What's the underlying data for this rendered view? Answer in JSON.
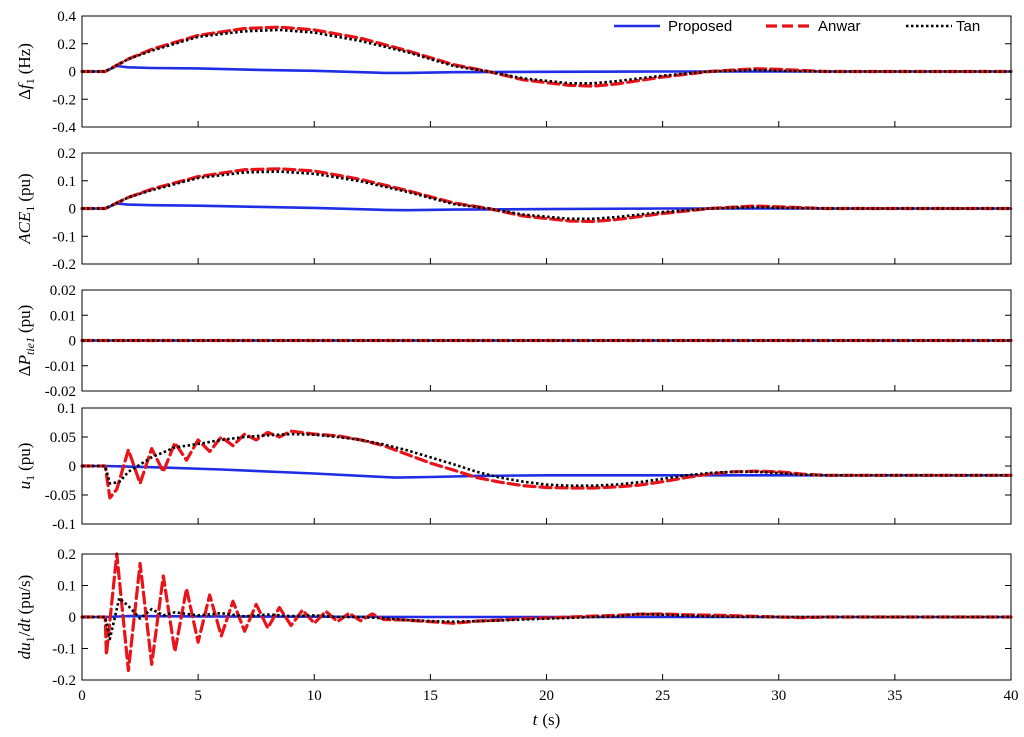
{
  "legend": {
    "position": "top-right",
    "entries": [
      {
        "name": "Proposed",
        "color": "#1f2ee6",
        "style": "solid"
      },
      {
        "name": "Anwar",
        "color": "#e8141a",
        "style": "dashed"
      },
      {
        "name": "Tan",
        "color": "#000000",
        "style": "dotted"
      }
    ]
  },
  "xlabel": {
    "var": "t",
    "unit": "(s)"
  },
  "chart_data": [
    {
      "type": "line",
      "ylabel": {
        "prefix": "Δ",
        "var": "f",
        "sub": "1",
        "unit": "(Hz)"
      },
      "ylim": [
        -0.4,
        0.4
      ],
      "xlim": [
        0,
        40
      ],
      "yticks": [
        "0.4",
        "0.2",
        "0",
        "-0.2",
        "-0.4"
      ],
      "ytick_values": [
        0.4,
        0.2,
        0,
        -0.2,
        -0.4
      ],
      "xticks": [
        5,
        10,
        15,
        20,
        25,
        30,
        35
      ],
      "series": [
        {
          "name": "Proposed",
          "x": [
            0,
            1,
            1.5,
            2,
            3,
            5,
            8,
            10,
            13,
            14,
            16,
            20,
            25,
            30,
            40
          ],
          "y": [
            0,
            0,
            0.04,
            0.03,
            0.025,
            0.022,
            0.01,
            0.005,
            -0.01,
            -0.01,
            -0.005,
            -0.002,
            0,
            0,
            0
          ]
        },
        {
          "name": "Anwar",
          "x": [
            0,
            1,
            2,
            3,
            5,
            7,
            8.5,
            10,
            12,
            14,
            16,
            17.5,
            19,
            21,
            22,
            23,
            25,
            27,
            29,
            30,
            32,
            40
          ],
          "y": [
            0,
            0,
            0.09,
            0.16,
            0.26,
            0.31,
            0.32,
            0.3,
            0.24,
            0.15,
            0.05,
            0,
            -0.06,
            -0.1,
            -0.105,
            -0.09,
            -0.04,
            0,
            0.02,
            0.015,
            0,
            0
          ]
        },
        {
          "name": "Tan",
          "x": [
            0,
            1,
            2,
            3,
            5,
            7,
            8.5,
            10,
            12,
            14,
            16,
            17.5,
            19,
            21,
            22,
            23,
            25,
            27,
            29,
            30,
            32,
            40
          ],
          "y": [
            0,
            0,
            0.09,
            0.15,
            0.25,
            0.29,
            0.3,
            0.28,
            0.22,
            0.14,
            0.04,
            0,
            -0.05,
            -0.085,
            -0.085,
            -0.07,
            -0.03,
            0,
            0.01,
            0.005,
            0,
            0
          ]
        }
      ]
    },
    {
      "type": "line",
      "ylabel": {
        "prefix": "",
        "var": "ACE",
        "sub": "1",
        "unit": "(pu)"
      },
      "ylim": [
        -0.2,
        0.2
      ],
      "xlim": [
        0,
        40
      ],
      "yticks": [
        "0.2",
        "0.1",
        "0",
        "-0.1",
        "-0.2"
      ],
      "ytick_values": [
        0.2,
        0.1,
        0,
        -0.1,
        -0.2
      ],
      "xticks": [
        5,
        10,
        15,
        20,
        25,
        30,
        35
      ],
      "series": [
        {
          "name": "Proposed",
          "x": [
            0,
            1,
            1.5,
            2,
            3,
            5,
            8,
            10,
            13,
            14,
            16,
            20,
            25,
            30,
            40
          ],
          "y": [
            0,
            0,
            0.018,
            0.014,
            0.012,
            0.01,
            0.005,
            0.002,
            -0.005,
            -0.006,
            -0.004,
            -0.002,
            0,
            0,
            0
          ]
        },
        {
          "name": "Anwar",
          "x": [
            0,
            1,
            2,
            3,
            5,
            7,
            8.5,
            10,
            12,
            14,
            16,
            17.5,
            19,
            21,
            22,
            23,
            25,
            27,
            29,
            30,
            32,
            40
          ],
          "y": [
            0,
            0,
            0.04,
            0.07,
            0.115,
            0.14,
            0.143,
            0.135,
            0.105,
            0.065,
            0.02,
            0,
            -0.027,
            -0.045,
            -0.047,
            -0.04,
            -0.018,
            0,
            0.009,
            0.006,
            0,
            0
          ]
        },
        {
          "name": "Tan",
          "x": [
            0,
            1,
            2,
            3,
            5,
            7,
            8.5,
            10,
            12,
            14,
            16,
            17.5,
            19,
            21,
            22,
            23,
            25,
            27,
            29,
            30,
            32,
            40
          ],
          "y": [
            0,
            0,
            0.04,
            0.066,
            0.11,
            0.13,
            0.133,
            0.125,
            0.098,
            0.06,
            0.016,
            0,
            -0.022,
            -0.037,
            -0.037,
            -0.031,
            -0.013,
            0,
            0.005,
            0.003,
            0,
            0
          ]
        }
      ]
    },
    {
      "type": "line",
      "ylabel": {
        "prefix": "Δ",
        "var": "P",
        "sub": "tie1",
        "unit": "(pu)"
      },
      "ylim": [
        -0.02,
        0.02
      ],
      "xlim": [
        0,
        40
      ],
      "yticks": [
        "0.02",
        "0.01",
        "0",
        "-0.01",
        "-0.02"
      ],
      "ytick_values": [
        0.02,
        0.01,
        0,
        -0.01,
        -0.02
      ],
      "xticks": [
        5,
        10,
        15,
        20,
        25,
        30,
        35
      ],
      "series": [
        {
          "name": "Proposed",
          "x": [
            0,
            40
          ],
          "y": [
            0,
            0
          ]
        },
        {
          "name": "Anwar",
          "x": [
            0,
            40
          ],
          "y": [
            0,
            0
          ]
        },
        {
          "name": "Tan",
          "x": [
            0,
            40
          ],
          "y": [
            0,
            0
          ]
        }
      ]
    },
    {
      "type": "line",
      "ylabel": {
        "prefix": "",
        "var": "u",
        "sub": "1",
        "unit": "(pu)"
      },
      "ylim": [
        -0.1,
        0.1
      ],
      "xlim": [
        0,
        40
      ],
      "yticks": [
        "0.1",
        "0.05",
        "0",
        "-0.05",
        "-0.1"
      ],
      "ytick_values": [
        0.1,
        0.05,
        0,
        -0.05,
        -0.1
      ],
      "xticks": [
        5,
        10,
        15,
        20,
        25,
        30,
        35
      ],
      "series": [
        {
          "name": "Proposed",
          "x": [
            0,
            1,
            3,
            6,
            10,
            13.5,
            15,
            17,
            20,
            25,
            30,
            40
          ],
          "y": [
            0,
            0,
            -0.002,
            -0.006,
            -0.013,
            -0.02,
            -0.019,
            -0.017,
            -0.016,
            -0.016,
            -0.016,
            -0.016
          ]
        },
        {
          "name": "Anwar",
          "x": [
            0,
            1,
            1.2,
            1.5,
            2,
            2.5,
            3,
            3.5,
            4,
            4.5,
            5,
            5.5,
            6,
            6.5,
            7,
            7.5,
            8,
            8.5,
            9,
            10,
            11,
            12,
            13,
            14,
            15,
            16,
            17,
            18,
            19,
            20,
            21,
            22,
            23,
            24,
            25,
            26,
            27,
            28,
            29,
            30,
            31,
            32,
            40
          ],
          "y": [
            0,
            0,
            -0.055,
            -0.04,
            0.028,
            -0.03,
            0.03,
            -0.01,
            0.04,
            0.01,
            0.045,
            0.025,
            0.05,
            0.035,
            0.055,
            0.045,
            0.058,
            0.05,
            0.06,
            0.055,
            0.052,
            0.045,
            0.035,
            0.02,
            0.005,
            -0.007,
            -0.02,
            -0.028,
            -0.034,
            -0.037,
            -0.038,
            -0.038,
            -0.036,
            -0.033,
            -0.027,
            -0.02,
            -0.014,
            -0.01,
            -0.009,
            -0.01,
            -0.014,
            -0.016,
            -0.016
          ]
        },
        {
          "name": "Tan",
          "x": [
            0,
            1,
            1.2,
            1.6,
            2,
            3,
            4,
            5,
            6,
            7,
            8,
            9,
            10,
            11,
            12,
            13,
            14,
            15,
            16,
            17,
            18,
            19,
            20,
            21,
            22,
            23,
            24,
            25,
            26,
            27,
            28,
            29,
            30,
            31,
            32,
            40
          ],
          "y": [
            0,
            0,
            -0.03,
            -0.028,
            -0.01,
            0.015,
            0.032,
            0.038,
            0.045,
            0.05,
            0.053,
            0.055,
            0.054,
            0.05,
            0.045,
            0.037,
            0.027,
            0.015,
            0.003,
            -0.01,
            -0.02,
            -0.027,
            -0.032,
            -0.034,
            -0.034,
            -0.032,
            -0.028,
            -0.022,
            -0.016,
            -0.012,
            -0.01,
            -0.01,
            -0.012,
            -0.015,
            -0.016,
            -0.016
          ]
        }
      ]
    },
    {
      "type": "line",
      "ylabel": {
        "prefix": "",
        "var": "du",
        "sub": "1",
        "unit": "/dt (pu/s)"
      },
      "ylim": [
        -0.2,
        0.2
      ],
      "xlim": [
        0,
        40
      ],
      "yticks": [
        "0.2",
        "0.1",
        "0",
        "-0.1",
        "-0.2"
      ],
      "ytick_values": [
        0.2,
        0.1,
        0,
        -0.1,
        -0.2
      ],
      "xticks": [
        5,
        10,
        15,
        20,
        25,
        30,
        35
      ],
      "series": [
        {
          "name": "Proposed",
          "x": [
            0,
            1,
            2,
            5,
            10,
            15,
            20,
            25,
            30,
            40
          ],
          "y": [
            0,
            0,
            0.003,
            0.002,
            0.001,
            0,
            0,
            0,
            0,
            0
          ]
        },
        {
          "name": "Anwar",
          "x": [
            0,
            1,
            1.05,
            1.5,
            2,
            2.5,
            3,
            3.5,
            4,
            4.5,
            5,
            5.5,
            6,
            6.5,
            7,
            7.5,
            8,
            8.5,
            9,
            9.5,
            10,
            10.5,
            11,
            11.5,
            12,
            12.5,
            13,
            14,
            15,
            16,
            17,
            18,
            19,
            20,
            21,
            22,
            23,
            24,
            25,
            26,
            27,
            28,
            29,
            30,
            31,
            32,
            40
          ],
          "y": [
            0,
            0,
            -0.12,
            0.2,
            -0.17,
            0.17,
            -0.15,
            0.13,
            -0.11,
            0.09,
            -0.08,
            0.07,
            -0.06,
            0.05,
            -0.045,
            0.04,
            -0.035,
            0.03,
            -0.027,
            0.022,
            -0.02,
            0.018,
            -0.015,
            0.012,
            -0.012,
            0.01,
            -0.008,
            -0.01,
            -0.015,
            -0.02,
            -0.013,
            -0.01,
            -0.005,
            -0.003,
            0,
            0.003,
            0.005,
            0.009,
            0.01,
            0.007,
            0.006,
            0.004,
            0.002,
            0,
            -0.002,
            0,
            0
          ]
        },
        {
          "name": "Tan",
          "x": [
            0,
            1,
            1.2,
            1.6,
            2,
            2.5,
            3,
            3.5,
            4,
            5,
            6,
            7,
            8,
            9,
            10,
            11,
            12,
            13,
            14,
            15,
            16,
            17,
            18,
            19,
            20,
            21,
            22,
            23,
            24,
            25,
            26,
            27,
            28,
            30,
            32,
            40
          ],
          "y": [
            0,
            0,
            -0.07,
            0.06,
            0.035,
            -0.005,
            0.025,
            0.005,
            0.015,
            0.005,
            0.012,
            0.002,
            0.008,
            0.003,
            0.005,
            0,
            0,
            -0.004,
            -0.01,
            -0.013,
            -0.015,
            -0.013,
            -0.011,
            -0.008,
            -0.005,
            -0.003,
            0,
            0.002,
            0.01,
            0.007,
            0.004,
            0.002,
            0.001,
            0,
            0,
            0
          ]
        }
      ]
    }
  ],
  "xtick_labels": [
    "0",
    "5",
    "10",
    "15",
    "20",
    "25",
    "30",
    "35",
    "40"
  ]
}
